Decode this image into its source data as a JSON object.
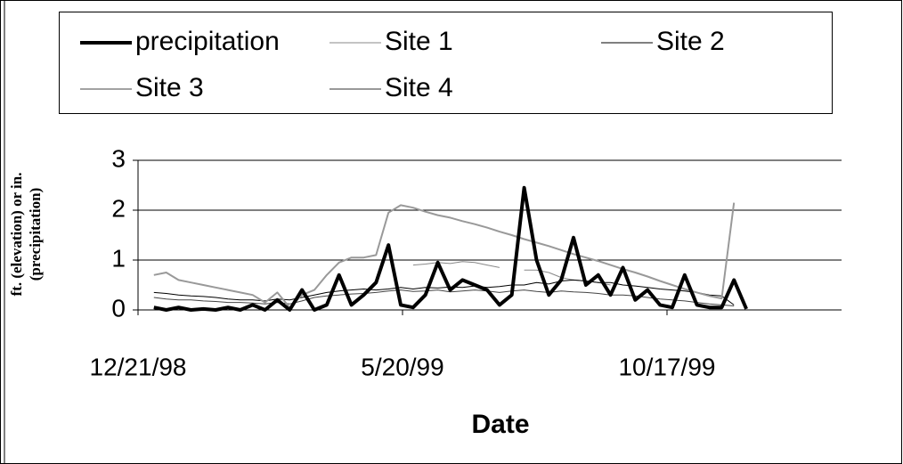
{
  "chart_data": {
    "type": "line",
    "xlabel": "Date",
    "ylabel": [
      "ft. (elevation) or in.",
      "(precipitation)"
    ],
    "x": [
      "12/30/98",
      "1/6/99",
      "1/13/99",
      "1/20/99",
      "1/27/99",
      "2/3/99",
      "2/10/99",
      "2/17/99",
      "2/24/99",
      "3/3/99",
      "3/10/99",
      "3/17/99",
      "3/24/99",
      "3/31/99",
      "4/7/99",
      "4/14/99",
      "4/21/99",
      "4/28/99",
      "5/5/99",
      "5/12/99",
      "5/19/99",
      "5/26/99",
      "6/2/99",
      "6/9/99",
      "6/16/99",
      "6/23/99",
      "6/30/99",
      "7/7/99",
      "7/14/99",
      "7/21/99",
      "7/28/99",
      "8/4/99",
      "8/11/99",
      "8/18/99",
      "8/25/99",
      "9/1/99",
      "9/8/99",
      "9/15/99",
      "9/22/99",
      "9/29/99",
      "10/6/99",
      "10/13/99",
      "10/20/99",
      "10/27/99",
      "11/3/99",
      "11/10/99",
      "11/17/99",
      "11/24/99",
      "12/1/99"
    ],
    "series": [
      {
        "name": "precipitation",
        "color": "#000000",
        "values": [
          0.05,
          0,
          0.05,
          0,
          0.02,
          0,
          0.05,
          0,
          0.1,
          0,
          0.2,
          0,
          0.4,
          0,
          0.1,
          0.7,
          0.1,
          0.3,
          0.55,
          1.3,
          0.1,
          0.05,
          0.3,
          0.95,
          0.4,
          0.6,
          0.5,
          0.4,
          0.1,
          0.3,
          2.45,
          1.0,
          0.3,
          0.6,
          1.45,
          0.5,
          0.7,
          0.3,
          0.85,
          0.2,
          0.4,
          0.1,
          0.05,
          0.7,
          0.1,
          0.05,
          0.05,
          0.6,
          0.02
        ]
      },
      {
        "name": "Site 1",
        "color": "#888888",
        "values": [
          null,
          null,
          null,
          null,
          null,
          null,
          null,
          null,
          null,
          null,
          null,
          null,
          null,
          null,
          null,
          null,
          null,
          null,
          null,
          null,
          null,
          0.9,
          0.92,
          0.95,
          0.93,
          0.97,
          0.95,
          0.9,
          0.85,
          null,
          0.8,
          0.8,
          0.75,
          0.65,
          0.6,
          0.58,
          0.55,
          0.5,
          null,
          null,
          null,
          null,
          null,
          null,
          null,
          null,
          null,
          null,
          null
        ]
      },
      {
        "name": "Site 2",
        "color": "#000000",
        "values": [
          0.35,
          0.33,
          0.3,
          0.28,
          0.27,
          0.25,
          0.22,
          0.2,
          0.2,
          0.18,
          0.22,
          0.2,
          0.25,
          0.3,
          0.35,
          0.38,
          0.4,
          0.42,
          0.4,
          0.42,
          0.45,
          0.42,
          0.45,
          0.44,
          0.46,
          0.45,
          0.48,
          0.45,
          0.47,
          0.5,
          0.5,
          0.55,
          0.52,
          0.58,
          0.6,
          0.58,
          0.55,
          0.55,
          0.5,
          0.48,
          0.45,
          0.42,
          0.4,
          0.38,
          0.35,
          0.3,
          0.28,
          0.1,
          null
        ]
      },
      {
        "name": "Site 3",
        "color": "#444444",
        "values": [
          0.25,
          0.22,
          0.2,
          0.2,
          0.18,
          0.17,
          0.15,
          0.15,
          0.14,
          0.12,
          0.15,
          0.12,
          0.18,
          0.25,
          0.28,
          0.3,
          0.32,
          0.33,
          0.35,
          0.38,
          0.4,
          0.37,
          0.38,
          0.4,
          0.36,
          0.38,
          0.4,
          0.38,
          0.35,
          0.38,
          0.4,
          0.37,
          0.35,
          0.38,
          0.36,
          0.35,
          0.33,
          0.3,
          0.3,
          0.28,
          0.25,
          0.22,
          0.2,
          0.18,
          0.15,
          0.12,
          0.1,
          0.08,
          null
        ]
      },
      {
        "name": "Site 4",
        "color": "#999999",
        "values": [
          0.7,
          0.75,
          0.6,
          0.55,
          0.5,
          0.45,
          0.4,
          0.35,
          0.3,
          0.15,
          0.35,
          0.05,
          0.3,
          0.4,
          0.7,
          0.95,
          1.05,
          1.05,
          1.1,
          1.95,
          2.1,
          2.05,
          1.97,
          1.9,
          1.85,
          1.78,
          1.72,
          1.65,
          1.57,
          1.5,
          1.42,
          1.35,
          1.28,
          1.2,
          1.12,
          1.05,
          0.98,
          0.9,
          0.82,
          0.75,
          0.67,
          0.58,
          0.5,
          0.42,
          0.35,
          0.28,
          0.23,
          2.15,
          null
        ]
      }
    ],
    "xlim": [
      "12/21/98",
      "1/24/00"
    ],
    "xticks": [
      "12/21/98",
      "5/20/99",
      "10/17/99"
    ],
    "ylim": [
      0,
      3
    ],
    "yticks": [
      0,
      1,
      2,
      3
    ],
    "grid": true
  }
}
